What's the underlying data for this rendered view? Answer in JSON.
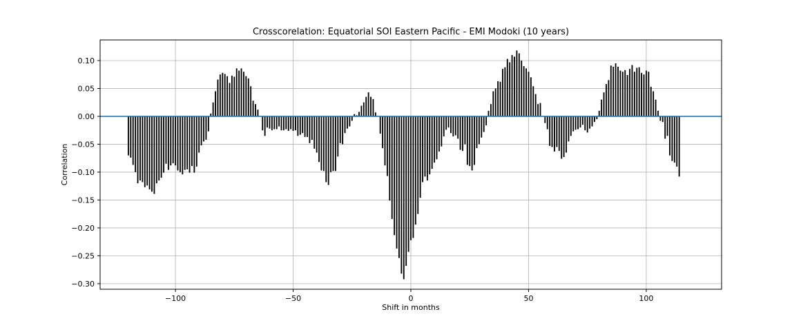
{
  "chart_data": {
    "type": "bar",
    "title": "Crosscorelation: Equatorial SOI Eastern Pacific - EMI Modoki (10 years)",
    "xlabel": "Shift in months",
    "ylabel": "Correlation",
    "xlim": [
      -132,
      132
    ],
    "ylim": [
      -0.31,
      0.137
    ],
    "xticks": [
      -100,
      -50,
      0,
      50,
      100
    ],
    "xtick_labels": [
      "−100",
      "−50",
      "0",
      "50",
      "100"
    ],
    "yticks": [
      -0.3,
      -0.25,
      -0.2,
      -0.15,
      -0.1,
      -0.05,
      0.0,
      0.05,
      0.1
    ],
    "ytick_labels": [
      "−0.30",
      "−0.25",
      "−0.20",
      "−0.15",
      "−0.10",
      "−0.05",
      "0.00",
      "0.05",
      "0.10"
    ],
    "grid": true,
    "bar_color": "#000000",
    "zero_line_color": "#1f77b4",
    "x_start": -120,
    "x_step": 1,
    "values": [
      -0.07,
      -0.074,
      -0.087,
      -0.1,
      -0.12,
      -0.115,
      -0.118,
      -0.127,
      -0.124,
      -0.131,
      -0.135,
      -0.139,
      -0.12,
      -0.115,
      -0.11,
      -0.101,
      -0.085,
      -0.096,
      -0.088,
      -0.084,
      -0.088,
      -0.097,
      -0.1,
      -0.104,
      -0.096,
      -0.095,
      -0.101,
      -0.089,
      -0.101,
      -0.09,
      -0.065,
      -0.052,
      -0.045,
      -0.042,
      -0.027,
      0.005,
      0.025,
      0.045,
      0.066,
      0.075,
      0.078,
      0.076,
      0.072,
      0.06,
      0.073,
      0.071,
      0.086,
      0.082,
      0.086,
      0.08,
      0.072,
      0.068,
      0.054,
      0.028,
      0.022,
      0.012,
      0.0,
      -0.025,
      -0.035,
      -0.02,
      -0.022,
      -0.025,
      -0.023,
      -0.023,
      -0.018,
      -0.025,
      -0.025,
      -0.023,
      -0.026,
      -0.023,
      -0.026,
      -0.025,
      -0.035,
      -0.033,
      -0.03,
      -0.037,
      -0.037,
      -0.048,
      -0.042,
      -0.058,
      -0.065,
      -0.082,
      -0.097,
      -0.098,
      -0.118,
      -0.123,
      -0.1,
      -0.098,
      -0.098,
      -0.072,
      -0.048,
      -0.05,
      -0.03,
      -0.022,
      -0.018,
      -0.008,
      0.004,
      0.002,
      0.008,
      0.019,
      0.025,
      0.035,
      0.043,
      0.035,
      0.031,
      0.007,
      0.0,
      -0.031,
      -0.057,
      -0.088,
      -0.107,
      -0.151,
      -0.184,
      -0.213,
      -0.237,
      -0.254,
      -0.282,
      -0.292,
      -0.268,
      -0.243,
      -0.222,
      -0.218,
      -0.194,
      -0.175,
      -0.146,
      -0.118,
      -0.108,
      -0.115,
      -0.104,
      -0.094,
      -0.083,
      -0.077,
      -0.063,
      -0.054,
      -0.036,
      -0.024,
      -0.02,
      -0.03,
      -0.036,
      -0.034,
      -0.04,
      -0.06,
      -0.062,
      -0.05,
      -0.087,
      -0.089,
      -0.097,
      -0.087,
      -0.057,
      -0.05,
      -0.038,
      -0.028,
      -0.016,
      0.01,
      0.022,
      0.045,
      0.05,
      0.063,
      0.062,
      0.085,
      0.088,
      0.103,
      0.097,
      0.11,
      0.107,
      0.118,
      0.113,
      0.1,
      0.09,
      0.086,
      0.08,
      0.07,
      0.054,
      0.04,
      0.022,
      0.024,
      0.0,
      -0.012,
      -0.023,
      -0.053,
      -0.055,
      -0.063,
      -0.055,
      -0.062,
      -0.076,
      -0.073,
      -0.065,
      -0.045,
      -0.035,
      -0.027,
      -0.024,
      -0.023,
      -0.02,
      -0.015,
      -0.025,
      -0.029,
      -0.022,
      -0.018,
      -0.01,
      -0.005,
      0.01,
      0.03,
      0.043,
      0.058,
      0.065,
      0.091,
      0.089,
      0.095,
      0.089,
      0.082,
      0.08,
      0.083,
      0.074,
      0.085,
      0.092,
      0.08,
      0.087,
      0.088,
      0.078,
      0.075,
      0.082,
      0.08,
      0.053,
      0.045,
      0.03,
      0.01,
      -0.008,
      -0.01,
      -0.04,
      -0.035,
      -0.07,
      -0.08,
      -0.083,
      -0.09,
      -0.108
    ]
  }
}
